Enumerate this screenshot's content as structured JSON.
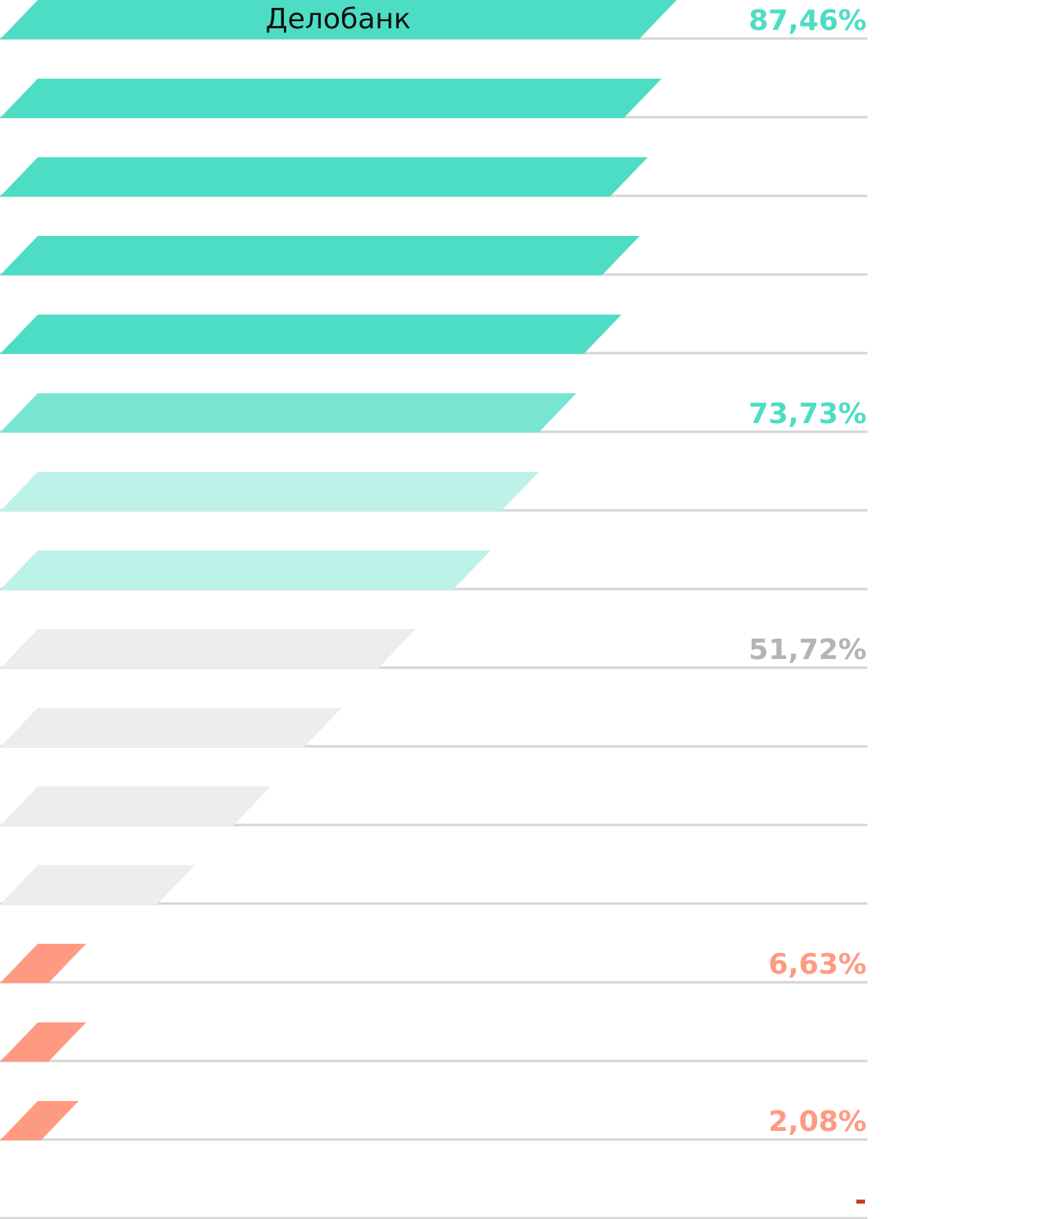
{
  "chart_data": {
    "type": "bar",
    "title": "Делобанк",
    "orientation": "horizontal",
    "grid": false,
    "xlim": [
      0,
      100
    ],
    "colors": {
      "top": "#4dddc4",
      "upper_mid": "#78e5d3",
      "light": "#bdf2e8",
      "grey": "#ededed",
      "salmon": "#ff9a82",
      "baseline": "#d5d5d5",
      "dash": "#c03a1a",
      "label_grey": "#b4b4b4"
    },
    "values": [
      87.46,
      85.4,
      83.5,
      82.4,
      79.9,
      73.73,
      68.6,
      62.0,
      51.72,
      41.6,
      31.9,
      21.5,
      6.63,
      6.63,
      2.08,
      0
    ],
    "labels": [
      "87,46%",
      "",
      "",
      "",
      "",
      "73,73%",
      "",
      "",
      "51,72%",
      "",
      "",
      "",
      "6,63%",
      "",
      "2,08%",
      "-"
    ],
    "bar_colors": [
      "top",
      "top",
      "top",
      "top",
      "top",
      "upper_mid",
      "light",
      "light",
      "grey",
      "grey",
      "grey",
      "grey",
      "salmon",
      "salmon",
      "salmon",
      "salmon"
    ],
    "label_colors": [
      "top",
      "",
      "",
      "",
      "",
      "top",
      "",
      "",
      "label_grey",
      "",
      "",
      "",
      "salmon",
      "",
      "salmon",
      "dash"
    ]
  }
}
